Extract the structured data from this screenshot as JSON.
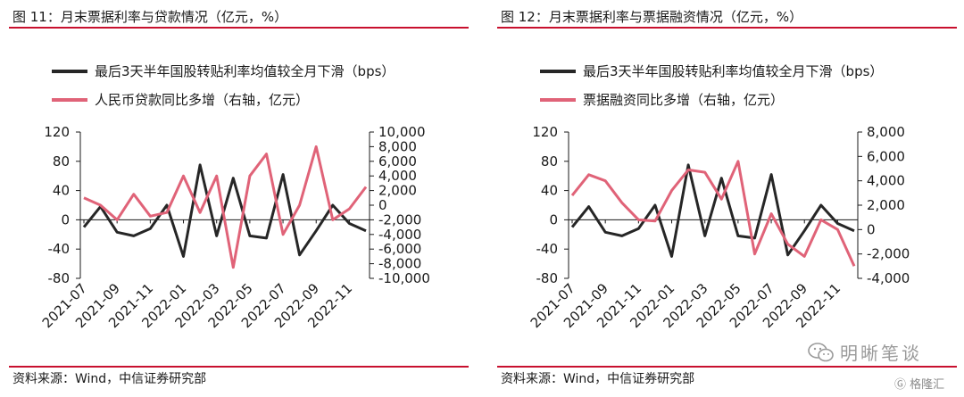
{
  "chart_data": [
    {
      "type": "line",
      "figure_title": "图 11：月末票据利率与贷款情况（亿元，%）",
      "source": "资料来源：Wind，中信证券研究部",
      "categories": [
        "2021-07",
        "2021-08",
        "2021-09",
        "2021-10",
        "2021-11",
        "2021-12",
        "2022-01",
        "2022-02",
        "2022-03",
        "2022-04",
        "2022-05",
        "2022-06",
        "2022-07",
        "2022-08",
        "2022-09",
        "2022-10",
        "2022-11",
        "2022-12"
      ],
      "xticks": [
        "2021-07",
        "2021-09",
        "2021-11",
        "2022-01",
        "2022-03",
        "2022-05",
        "2022-07",
        "2022-09",
        "2022-11"
      ],
      "yleft": {
        "ylim": [
          -80,
          120
        ],
        "ticks": [
          "120",
          "80",
          "40",
          "0",
          "-40",
          "-80"
        ],
        "tick_values": [
          120,
          80,
          40,
          0,
          -40,
          -80
        ]
      },
      "yright": {
        "ylim": [
          -10000,
          10000
        ],
        "ticks": [
          "10,000",
          "8,000",
          "6,000",
          "4,000",
          "2,000",
          "0",
          "-2,000",
          "-4,000",
          "-6,000",
          "-8,000",
          "-10,000"
        ],
        "tick_values": [
          10000,
          8000,
          6000,
          4000,
          2000,
          0,
          -2000,
          -4000,
          -6000,
          -8000,
          -10000
        ]
      },
      "series": [
        {
          "name": "最后3天半年国股转贴利率均值较全月下滑（bps）",
          "axis": "left",
          "color": "#262626",
          "values": [
            -10,
            18,
            -17,
            -22,
            -12,
            20,
            -50,
            75,
            -22,
            57,
            -22,
            -25,
            62,
            -48,
            -15,
            20,
            -5,
            -15
          ]
        },
        {
          "name": "人民币贷款同比多增（右轴，亿元）",
          "axis": "right",
          "color": "#e06378",
          "values": [
            1000,
            0,
            -2000,
            1500,
            -1500,
            -1000,
            4000,
            -1000,
            4000,
            -8500,
            4000,
            7000,
            -4000,
            0,
            8000,
            -2000,
            -500,
            2500
          ]
        }
      ]
    },
    {
      "type": "line",
      "figure_title": "图 12：月末票据利率与票据融资情况（亿元，%）",
      "source": "资料来源：Wind，中信证券研究部",
      "categories": [
        "2021-07",
        "2021-08",
        "2021-09",
        "2021-10",
        "2021-11",
        "2021-12",
        "2022-01",
        "2022-02",
        "2022-03",
        "2022-04",
        "2022-05",
        "2022-06",
        "2022-07",
        "2022-08",
        "2022-09",
        "2022-10",
        "2022-11",
        "2022-12"
      ],
      "xticks": [
        "2021-07",
        "2021-09",
        "2021-11",
        "2022-01",
        "2022-03",
        "2022-05",
        "2022-07",
        "2022-09",
        "2022-11"
      ],
      "yleft": {
        "ylim": [
          -80,
          120
        ],
        "ticks": [
          "120",
          "80",
          "40",
          "0",
          "-40",
          "-80"
        ],
        "tick_values": [
          120,
          80,
          40,
          0,
          -40,
          -80
        ]
      },
      "yright": {
        "ylim": [
          -4000,
          8000
        ],
        "ticks": [
          "8,000",
          "6,000",
          "4,000",
          "2,000",
          "0",
          "-2,000",
          "-4,000"
        ],
        "tick_values": [
          8000,
          6000,
          4000,
          2000,
          0,
          -2000,
          -4000
        ]
      },
      "series": [
        {
          "name": "最后3天半年国股转贴利率均值较全月下滑（bps）",
          "axis": "left",
          "color": "#262626",
          "values": [
            -10,
            18,
            -17,
            -22,
            -12,
            20,
            -50,
            75,
            -22,
            57,
            -22,
            -25,
            62,
            -48,
            -15,
            20,
            -5,
            -15
          ]
        },
        {
          "name": "票据融资同比多增（右轴，亿元）",
          "axis": "right",
          "color": "#e06378",
          "values": [
            2800,
            4500,
            4000,
            2200,
            800,
            700,
            3200,
            4900,
            4700,
            2500,
            5600,
            -2000,
            1300,
            -1200,
            -2200,
            800,
            0,
            -3000
          ]
        }
      ]
    }
  ],
  "watermark": {
    "text": "明晰笔谈",
    "logo_text": "格隆汇"
  }
}
